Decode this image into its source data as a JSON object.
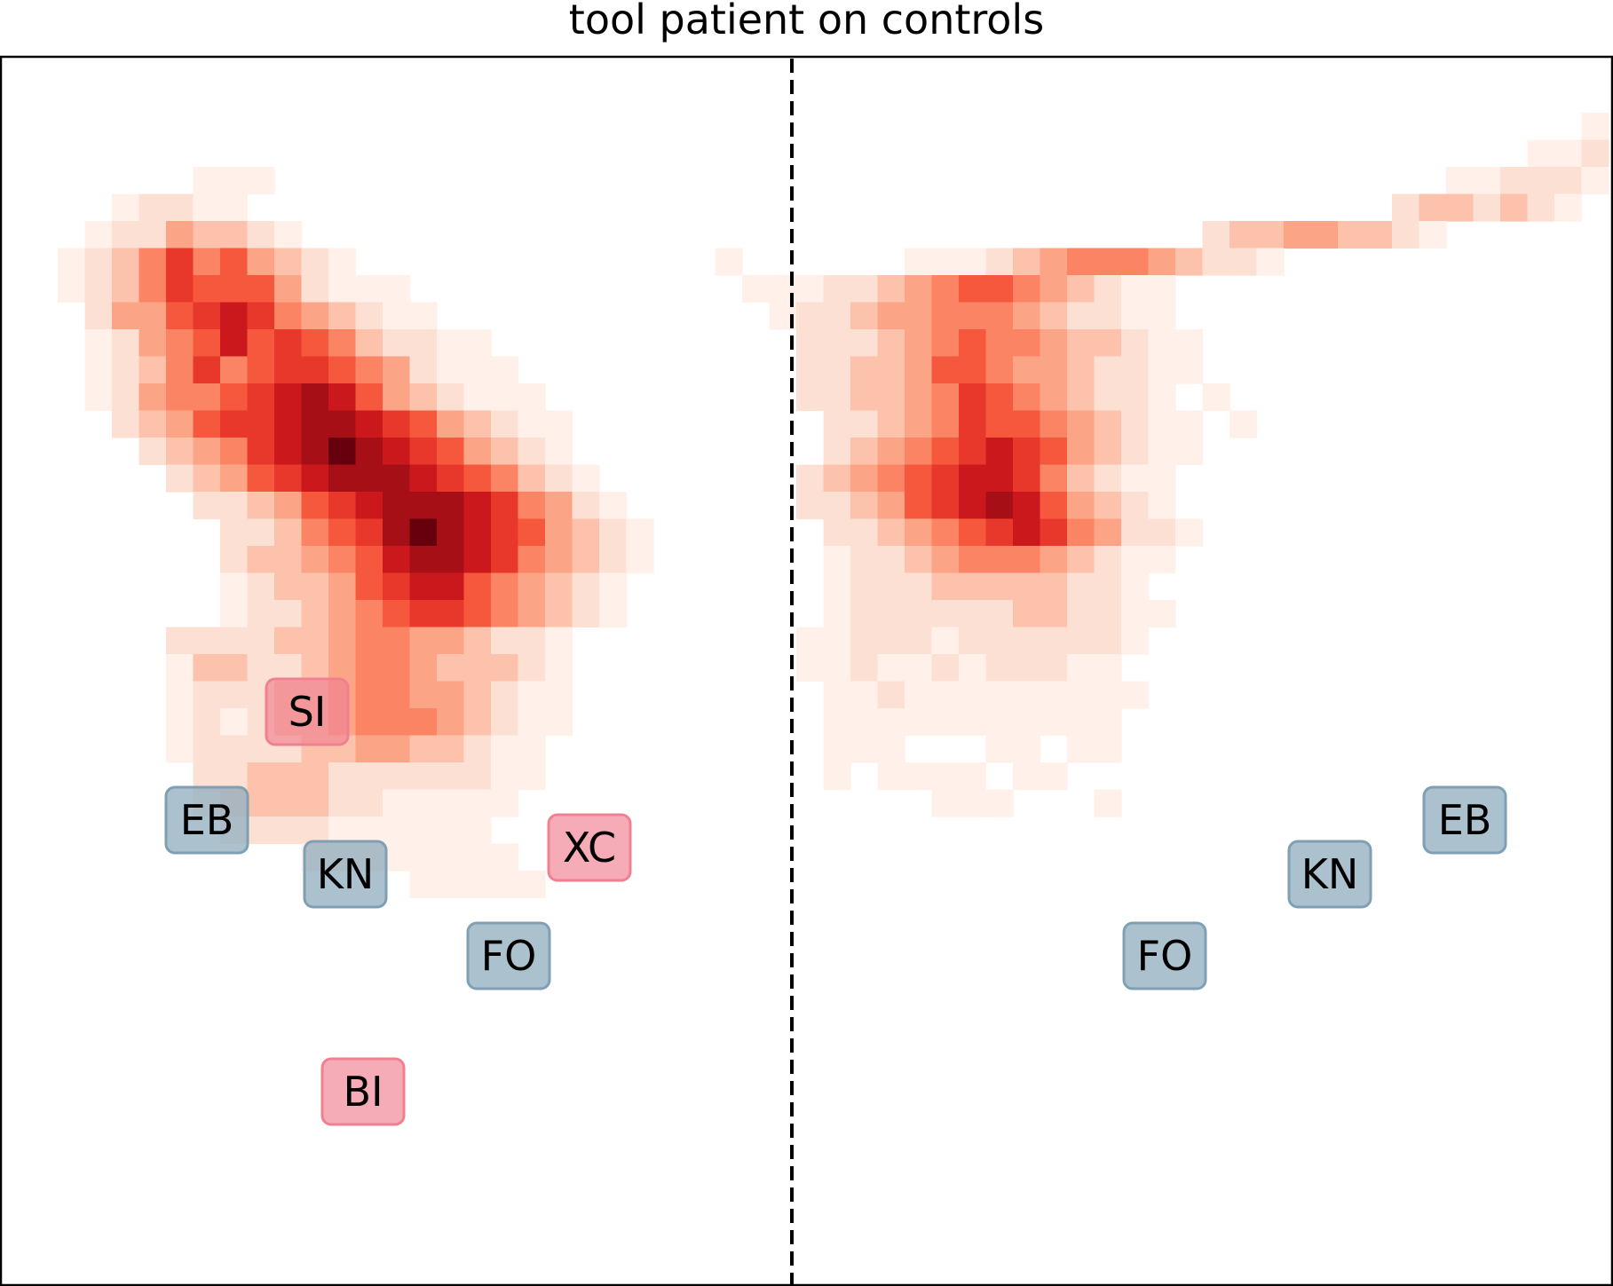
{
  "chart_data": {
    "type": "heatmap",
    "title": "tool patient on controls",
    "xlabel": "",
    "ylabel": "",
    "grid": false,
    "colormap": "Reds",
    "divider": "dashed vertical line between hemispheres",
    "hemispheres": {
      "left": {
        "rows": [
          "..................................................................",
          "..................................................................",
          "...........................................................................",
          "...................................................................................",
          ".......1.1.1..................................................................",
          "....1.2.2.1.1..........................................................",
          "...1.2.2.4.3.3.2.1.........................................................",
          "..1.2.3.5.7.5.6.4.3.2.1...................................................",
          "..1.2.3.5.7.6.6.6.4.2.1.1.1..............................................",
          "...2.4.4.6.7.8.7.5.4.3.2.1.1..............................................",
          "...1.2.4.5.6.8.6.7.6.5.3.2.2.1.1...........................................",
          "...1.2.3.5.7.5.6.7.7.6.5.4.2.1.1.1..........................................",
          "...1.2.4.5.5.6.7.8.9.8.6.4.3.2.1.1.1........................................",
          "....2.3.4.6.7.7.8.9.9.8.7.6.4.3.2.1.1.......................................",
          ".....2.3.4.5.7.8.9.10.9.8.7.6.4.3.2.1.......................................",
          "......2.3.4.6.7.8.9.9.9.8.7.6.5.3.2.1.......................................",
          ".......2.2.3.4.6.7.8.9.9.9.8.7.5.4.2.1.......................................",
          "........2.2.3.5.6.7.9.10.9.8.7.6.4.3.2.1......................................",
          "........2.3.3.4.5.6.8.9.9.8.7.5.4.3.2.1......................................",
          "........1.2.3.3.4.6.7.8.8.6.5.4.3.2.1.......................................",
          "........1.2.2.3.4.5.6.7.7.6.5.4.3.2.1.......................................",
          "......2.2.2.2.3.3.4.5.5.4.4.3.2.2.1.......................................",
          "......1.3.3.2.2.3.4.5.5.4.3.3.3.2.1.......................................",
          "......1.2.2.2.3.3.4.5.5.4.4.3.2.1.1.......................................",
          "......1.2.1.2.3.3.4.5.5.5.4.3.2.1.1.......................................",
          "......1.2.2.2.2.3.3.4.4.3.3.2.1.1.......................................",
          ".......2.2.3.3.3.2.2.2.2.2.2.1.1.......................................",
          ".......1.2.3.3.3.2.2.1.1.1.1.1.......................................",
          "........1.2.2.2.1.1.1.1.1.1.......................................",
          "...........1.1.1.1.1.1.1.1.......................................",
          "...............1.1.1.1.1..........................................."
        ]
      },
      "right": {
        "rows": [
          "...................................................................",
          "...................................................................",
          "...........................................................1.1.1",
          ".........................................................1.1.2.1.1",
          "......................................................1.1.2.2.2.1.1",
          "....................................................2.3.3.2.3.2.1",
          ".............................................2.3.3.4.4.3.3.2.1",
          "...........................1.......1.1.1.2.3.4.5.5.5.4.3.2.2.1",
          "............................1.1.1.2.2.3.4.5.6.6.5.4.3.2.1.1",
          ".............................1.2.2.3.4.4.5.5.5.4.3.2.2.1.1",
          "..............................2.2.2.3.4.5.6.5.5.4.3.3.2.1.1",
          "..............................2.2.3.3.4.6.6.5.4.4.3.2.2.1.1",
          "..............................2.2.3.3.4.5.7.6.5.4.3.2.2.1..1",
          "...............................2.2.3.4.5.7.6.6.5.4.3.2.1.1..1",
          "...............................2.3.4.5.6.7.8.7.6.4.3.2.1.1",
          "..............................2.3.4.5.6.7.8.8.7.5.3.2.1.1",
          "..............................2.2.3.4.6.7.8.9.8.6.4.3.2.1",
          "...............................2.2.3.4.5.6.7.8.7.5.4.2.2.1",
          "...............................1.2.2.3.4.5.5.5.4.3.2.1.1",
          "...............................1.2.2.2.3.3.3.3.3.2.2.1",
          "...............................1.2.2.2.2.2.2.3.3.2.2.1.1",
          "..............................1.1.2.2.2.1.2.2.2.2.2.2.1",
          "..............................1.1.2.1.1.2.1.2.2.2.1.1",
          "...............................1.1.2.1.1.1.1.1.1.1.1.1",
          "...............................1.1.1.1.1.1.1.1.1.1.1",
          "...............................1.1.1....1.1..1.1",
          "...............................1..1.1.1.1..1.1",
          "...................................1.1.1....1"
        ]
      }
    },
    "annotations": [
      {
        "text": "SI",
        "hemisphere": "left",
        "group": "target"
      },
      {
        "text": "EB",
        "hemisphere": "left",
        "group": "control"
      },
      {
        "text": "KN",
        "hemisphere": "left",
        "group": "control"
      },
      {
        "text": "XC",
        "hemisphere": "left",
        "group": "target"
      },
      {
        "text": "FO",
        "hemisphere": "left",
        "group": "control"
      },
      {
        "text": "BI",
        "hemisphere": "left",
        "group": "target"
      },
      {
        "text": "EB",
        "hemisphere": "right",
        "group": "control"
      },
      {
        "text": "KN",
        "hemisphere": "right",
        "group": "control"
      },
      {
        "text": "FO",
        "hemisphere": "right",
        "group": "control"
      }
    ],
    "label_colors": {
      "target": "#f08090",
      "control": "#7f9fb4"
    }
  }
}
